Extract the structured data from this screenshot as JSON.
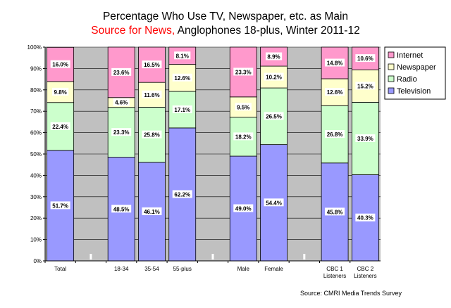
{
  "title": {
    "line1": "Percentage Who Use TV, Newspaper, etc. as Main",
    "line2_red": "Source for News,",
    "line2_rest": " Anglophones 18-plus, Winter 2011-12"
  },
  "source": "Source: CMRI Media Trends Survey",
  "colors": {
    "Television": "#9999ff",
    "Radio": "#ccffcc",
    "Newspaper": "#ffffcc",
    "Internet": "#ff99cc",
    "gap": "#c0c0c0"
  },
  "chart_data": {
    "type": "bar",
    "stacked": true,
    "title": "Percentage Who Use TV, Newspaper, etc. as Main Source for News, Anglophones 18-plus, Winter 2011-12",
    "ylim": [
      0,
      100
    ],
    "yticks": [
      "0%",
      "10%",
      "20%",
      "30%",
      "40%",
      "50%",
      "60%",
      "70%",
      "80%",
      "90%",
      "100%"
    ],
    "categories": [
      "Total",
      "",
      "18-34",
      "35-54",
      "55-plus",
      "",
      "Male",
      "Female",
      "",
      "CBC 1 Listeners",
      "CBC 2 Listeners"
    ],
    "category_lines": [
      [
        "Total"
      ],
      [
        ""
      ],
      [
        "18-34"
      ],
      [
        "35-54"
      ],
      [
        "55-plus"
      ],
      [
        ""
      ],
      [
        "Male"
      ],
      [
        "Female"
      ],
      [
        ""
      ],
      [
        "CBC 1",
        "Listeners"
      ],
      [
        "CBC 2",
        "Listeners"
      ]
    ],
    "series": [
      {
        "name": "Television",
        "values": [
          51.7,
          null,
          48.5,
          46.1,
          62.2,
          null,
          49.0,
          54.4,
          null,
          45.8,
          40.3
        ],
        "labels": [
          "51.7%",
          "",
          "48.5%",
          "46.1%",
          "62.2%",
          "",
          "49.0%",
          "54.4%",
          "",
          "45.8%",
          "40.3%"
        ]
      },
      {
        "name": "Radio",
        "values": [
          22.4,
          null,
          23.3,
          25.8,
          17.1,
          null,
          18.2,
          26.5,
          null,
          26.8,
          33.9
        ],
        "labels": [
          "22.4%",
          "",
          "23.3%",
          "25.8%",
          "17.1%",
          "",
          "18.2%",
          "26.5%",
          "",
          "26.8%",
          "33.9%"
        ]
      },
      {
        "name": "Newspaper",
        "values": [
          9.8,
          null,
          4.6,
          11.6,
          12.6,
          null,
          9.5,
          10.2,
          null,
          12.6,
          15.2
        ],
        "labels": [
          "9.8%",
          "",
          "4.6%",
          "11.6%",
          "12.6%",
          "",
          "9.5%",
          "10.2%",
          "",
          "12.6%",
          "15.2%"
        ]
      },
      {
        "name": "Internet",
        "values": [
          16.0,
          null,
          23.6,
          16.5,
          8.1,
          null,
          23.3,
          8.9,
          null,
          14.8,
          10.6
        ],
        "labels": [
          "16.0%",
          "",
          "23.6%",
          "16.5%",
          "8.1%",
          "",
          "23.3%",
          "8.9%",
          "",
          "14.8%",
          "10.6%"
        ]
      }
    ],
    "legend": [
      "Internet",
      "Newspaper",
      "Radio",
      "Television"
    ],
    "legend_position": "right"
  }
}
